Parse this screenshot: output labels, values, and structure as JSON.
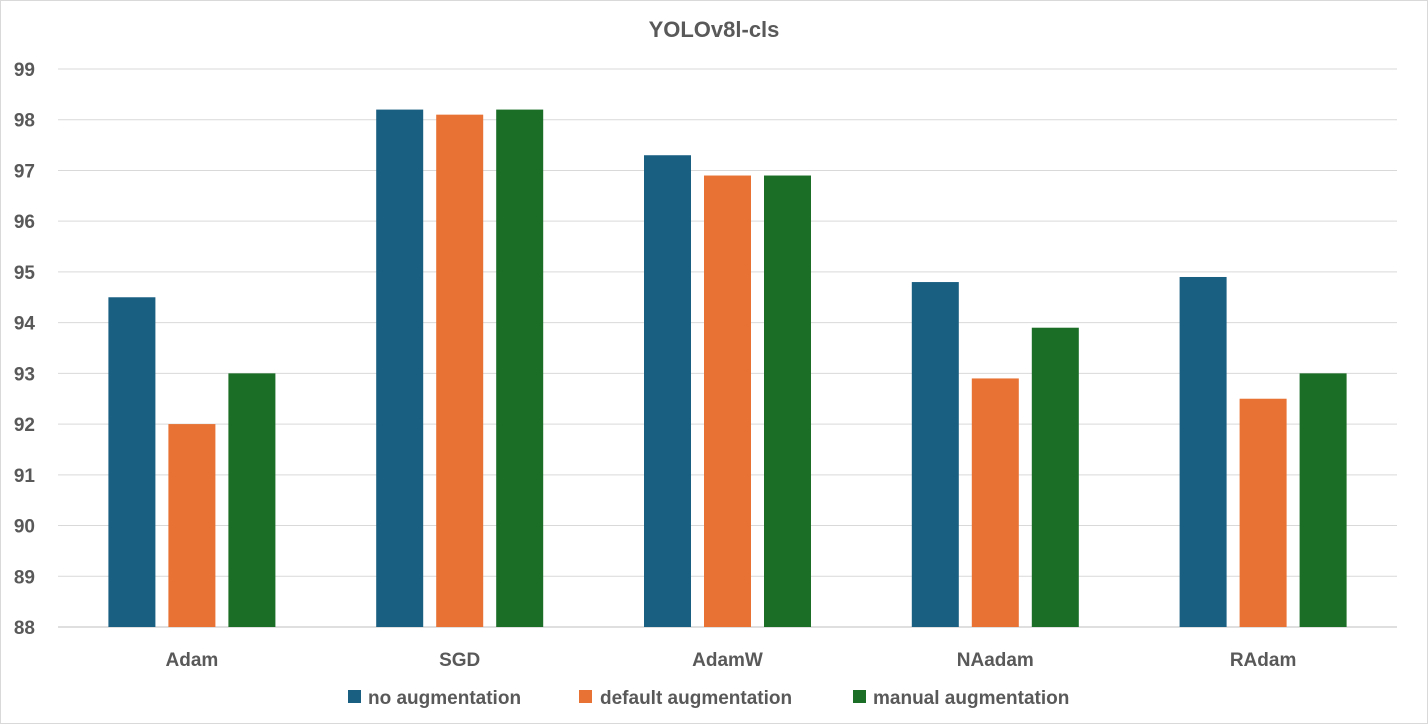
{
  "chart_data": {
    "type": "bar",
    "title": "YOLOv8l-cls",
    "xlabel": "",
    "ylabel": "",
    "categories": [
      "Adam",
      "SGD",
      "AdamW",
      "NAadam",
      "RAdam"
    ],
    "series": [
      {
        "name": "no augmentation",
        "color": "#185f82",
        "values": [
          94.5,
          98.2,
          97.3,
          94.8,
          94.9
        ]
      },
      {
        "name": "default augmentation",
        "color": "#e87234",
        "values": [
          92.0,
          98.1,
          96.9,
          92.9,
          92.5
        ]
      },
      {
        "name": "manual augmentation",
        "color": "#1a6e26",
        "values": [
          93.0,
          98.2,
          96.9,
          93.9,
          93.0
        ]
      }
    ],
    "ylim": [
      88,
      99
    ],
    "yticks": [
      "88",
      "89",
      "90",
      "91",
      "92",
      "93",
      "94",
      "95",
      "96",
      "97",
      "98",
      "99"
    ],
    "grid": true,
    "legend_position": "bottom"
  }
}
